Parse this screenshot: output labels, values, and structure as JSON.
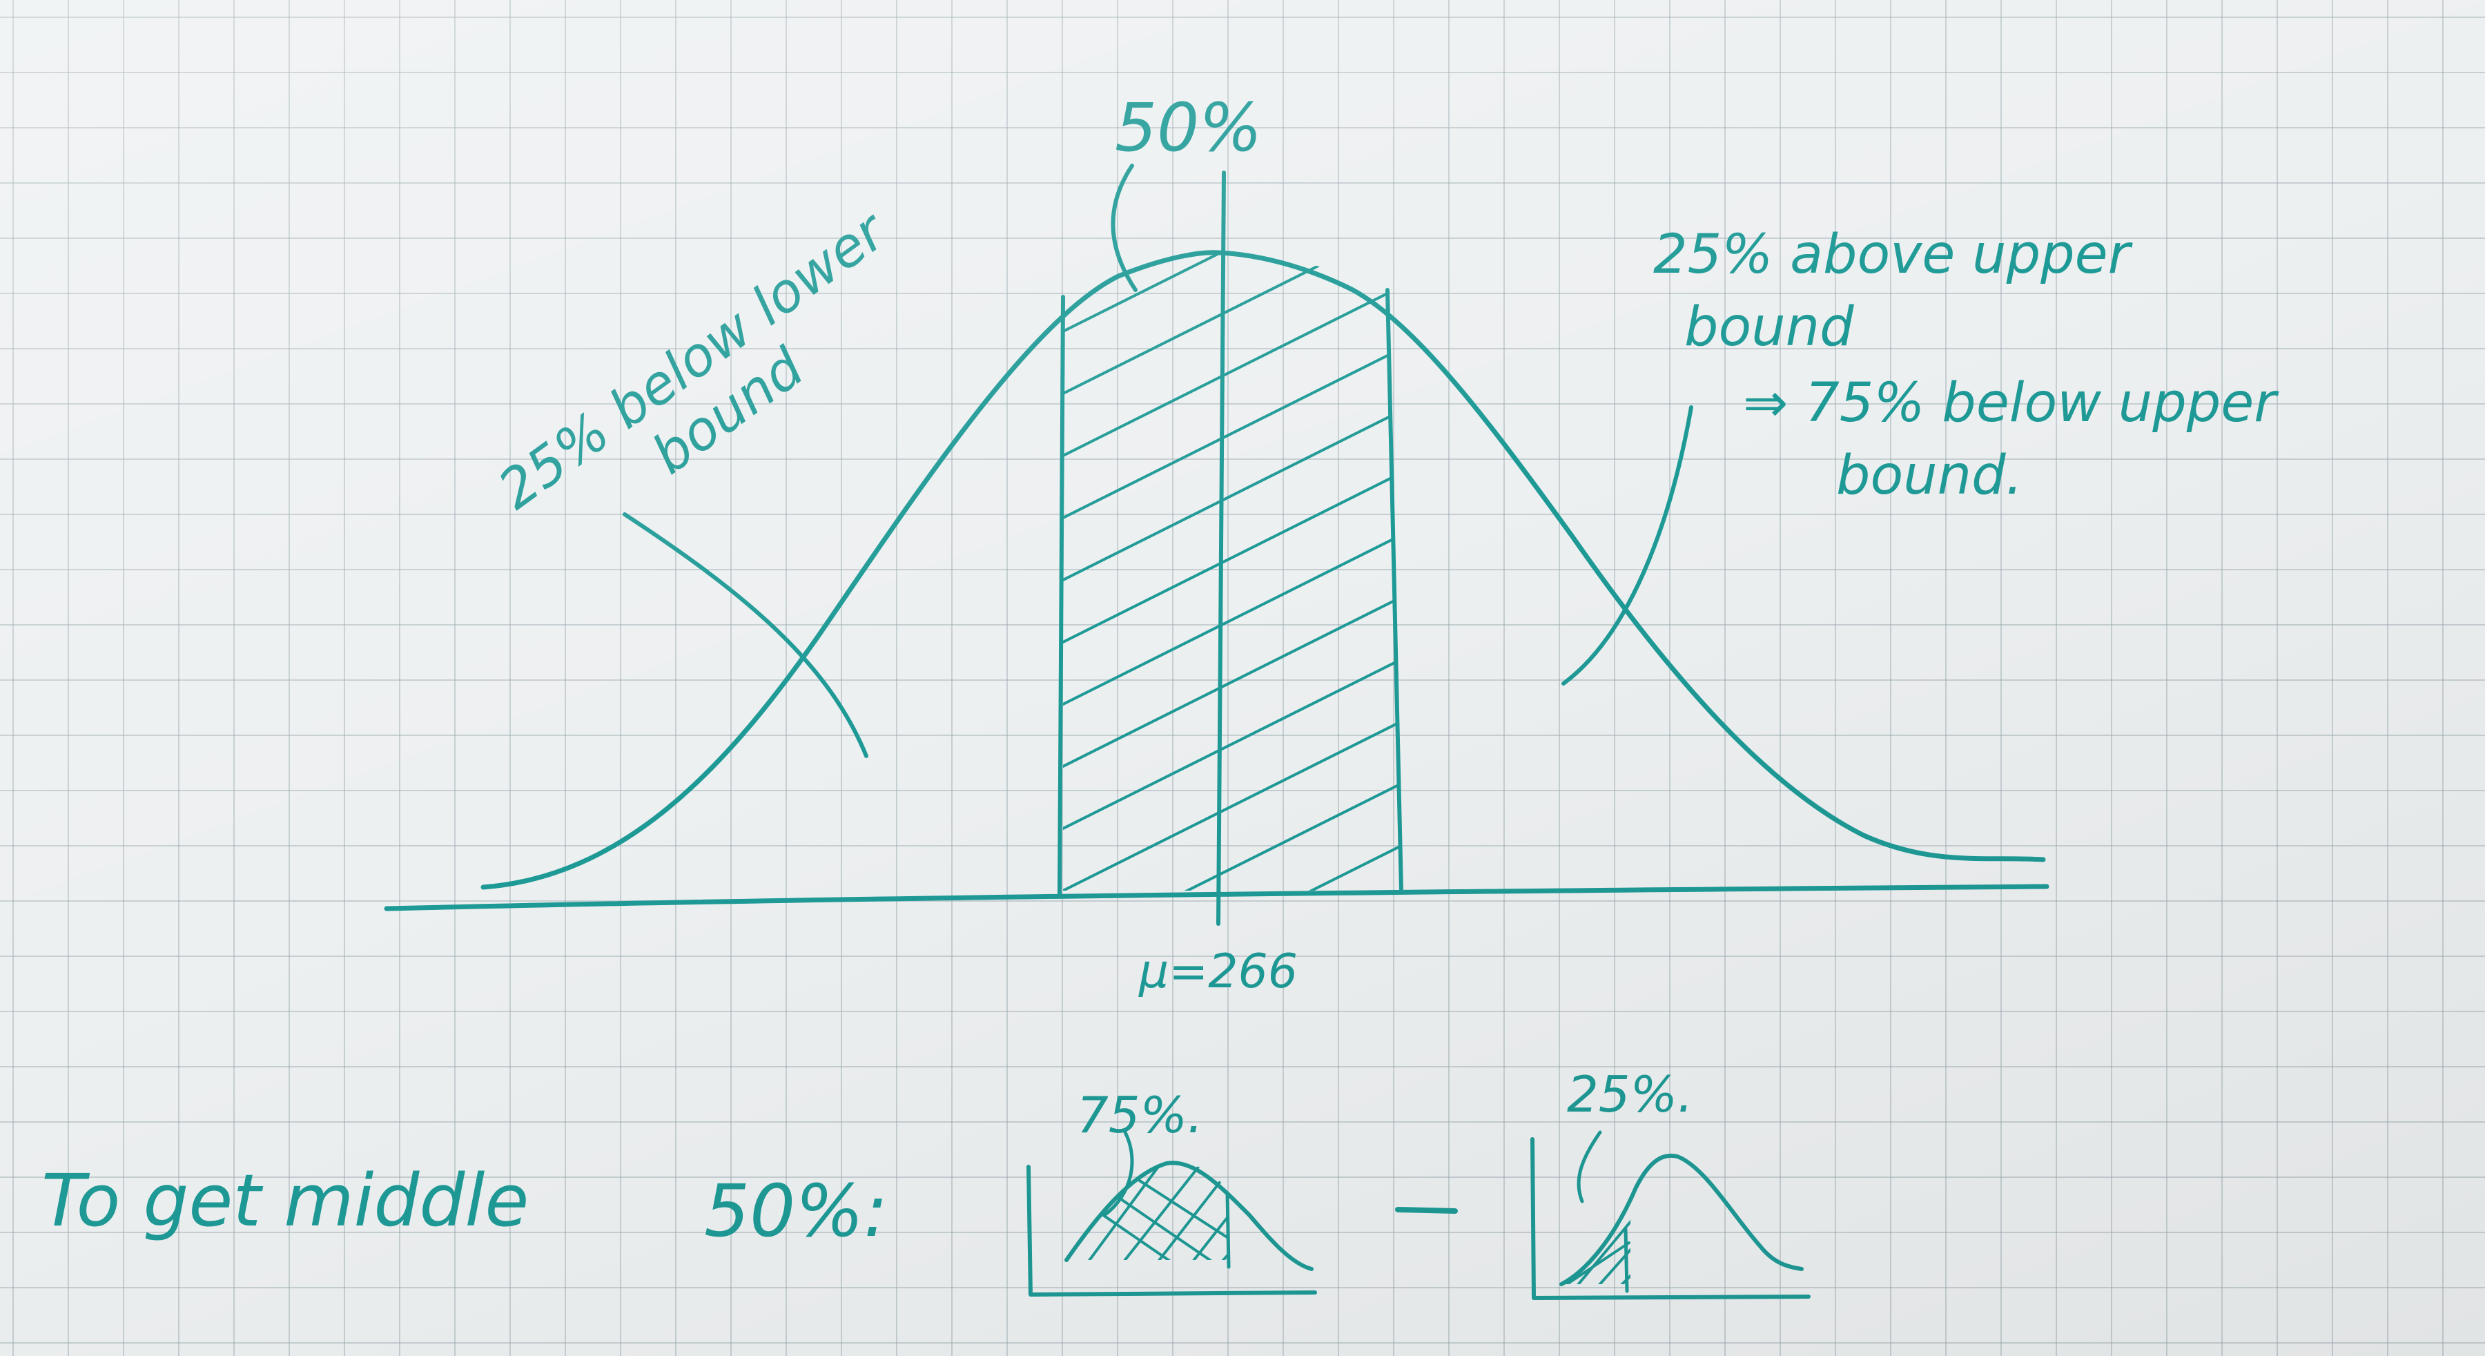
{
  "colors": {
    "ink": "#1e9a96",
    "paper": "#edf0f1",
    "grid": "#96a5ac"
  },
  "labels": {
    "top_pct": "50%",
    "left_line1": "25% below lower",
    "left_line2": "bound",
    "right_line1": "25% above upper",
    "right_line2": "bound",
    "right_line3": "⇒ 75% below upper",
    "right_line4": "bound.",
    "mu": "μ=266",
    "bottom_text": "To get middle",
    "bottom_pct": "50%:",
    "minus": "–",
    "small1_pct": "75%.",
    "small2_pct": "25%."
  }
}
